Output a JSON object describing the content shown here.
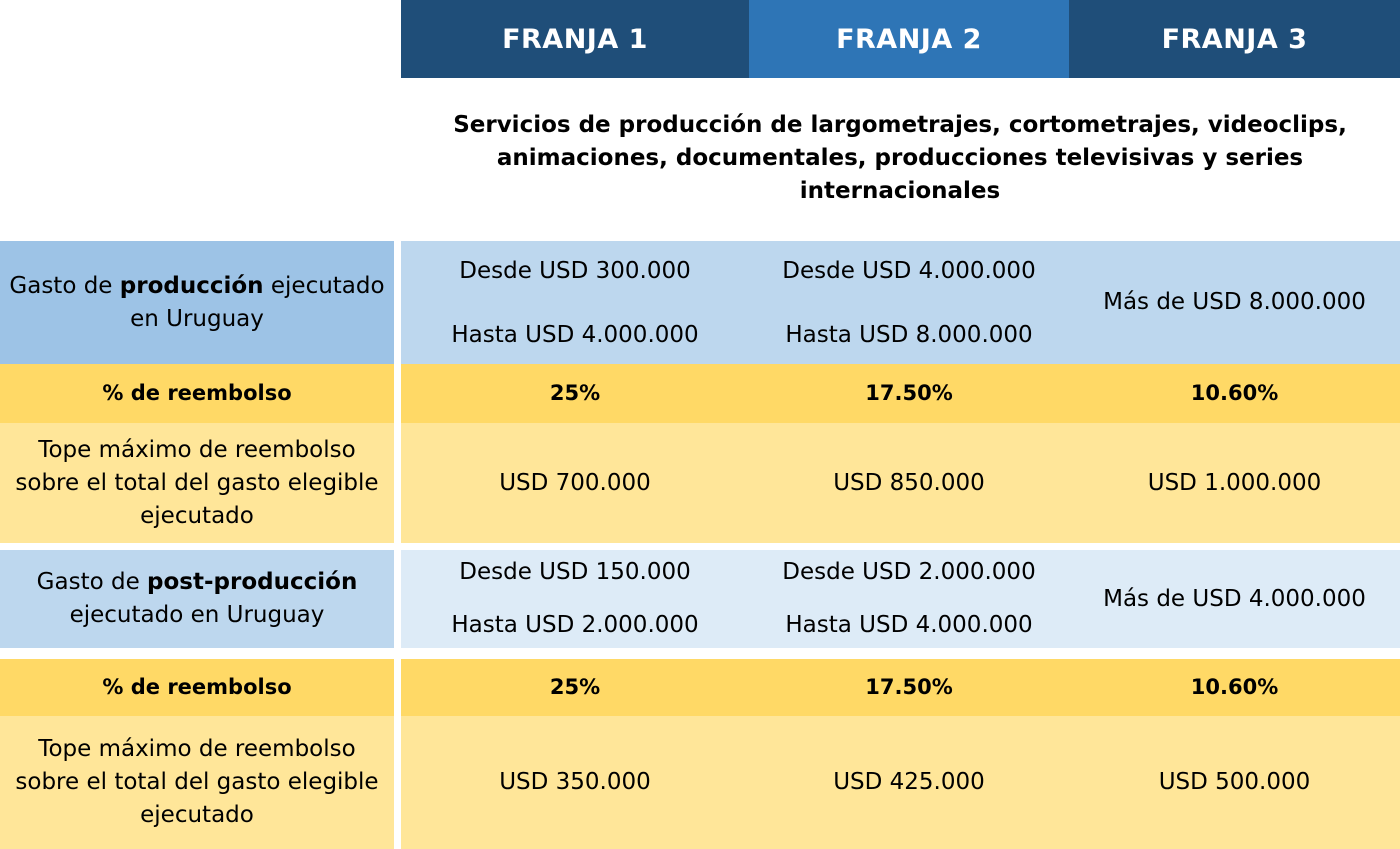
{
  "header": {
    "tiers": [
      "FRANJA 1",
      "FRANJA 2",
      "FRANJA 3"
    ]
  },
  "subtitle": "Servicios de producción de largometrajes, cortometrajes, videoclips, animaciones, documentales, producciones televisivas y series internacionales",
  "production": {
    "label_before": "Gasto de ",
    "label_bold": "producción",
    "label_after": " ejecutado en Uruguay",
    "tier1": {
      "from": "Desde USD 300.000",
      "to": "Hasta USD 4.000.000"
    },
    "tier2": {
      "from": "Desde USD 4.000.000",
      "to": "Hasta USD 8.000.000"
    },
    "tier3": "Más de USD 8.000.000",
    "refund_label": "% de reembolso",
    "refund": [
      "25%",
      "17.50%",
      "10.60%"
    ],
    "cap_label": "Tope máximo de reembolso sobre el total del gasto elegible ejecutado",
    "cap": [
      "USD 700.000",
      "USD 850.000",
      "USD 1.000.000"
    ]
  },
  "postproduction": {
    "label_before": "Gasto de ",
    "label_bold": "post-producción",
    "label_after": " ejecutado en Uruguay",
    "tier1": {
      "from": "Desde USD 150.000",
      "to": "Hasta USD 2.000.000"
    },
    "tier2": {
      "from": "Desde USD 2.000.000",
      "to": "Hasta USD 4.000.000"
    },
    "tier3": "Más de USD 4.000.000",
    "refund_label": "% de reembolso",
    "refund": [
      "25%",
      "17.50%",
      "10.60%"
    ],
    "cap_label": "Tope máximo de reembolso sobre el total del gasto elegible ejecutado",
    "cap": [
      "USD 350.000",
      "USD 425.000",
      "USD 500.000"
    ]
  },
  "colors": {
    "header_dark": "#1f4e79",
    "header_mid": "#2e75b6",
    "label_blue": "#9dc3e6",
    "cell_blue": "#bdd7ee",
    "cell_light_blue": "#ddebf7",
    "gold": "#ffd966",
    "cream": "#ffe699"
  }
}
